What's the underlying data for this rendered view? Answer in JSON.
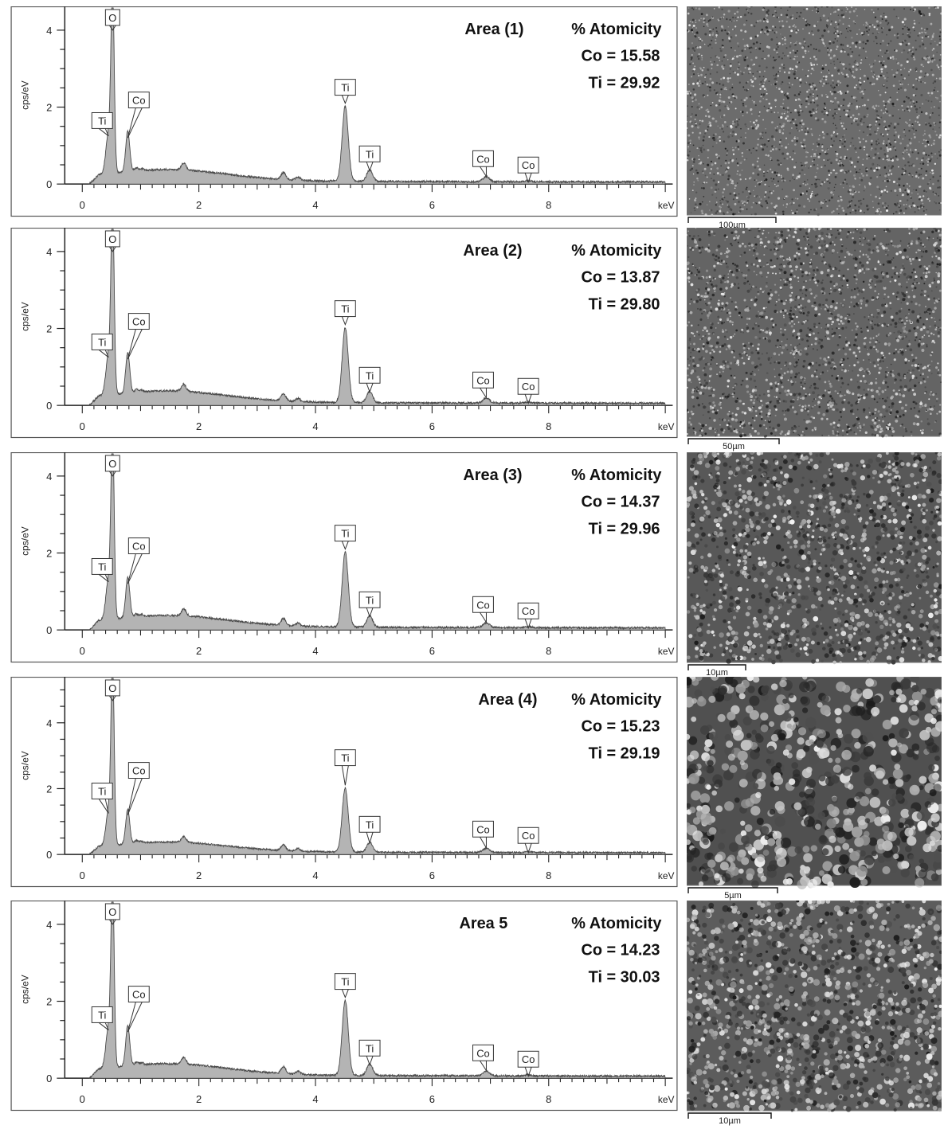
{
  "colors": {
    "frame": "#555555",
    "fill": "#b4b4b4",
    "line": "#4a4a4a",
    "text": "#111111"
  },
  "spectrum": {
    "xlabel_unit": "keV",
    "ylabel": "cps/eV",
    "x_ticks": [
      "0",
      "2",
      "4",
      "6",
      "8"
    ],
    "peaks": [
      {
        "label": "O",
        "energy": 0.52
      },
      {
        "label": "Ti",
        "energy": 0.45
      },
      {
        "label": "Co",
        "energy": 0.78
      },
      {
        "label": "Ti",
        "energy": 4.51
      },
      {
        "label": "Ti",
        "energy": 4.93
      },
      {
        "label": "Co",
        "energy": 6.93
      },
      {
        "label": "Co",
        "energy": 7.65
      }
    ]
  },
  "panels": [
    {
      "area_label": "Area (1)",
      "atomicity_label": "% Atomicity",
      "co_line": "Co = 15.58",
      "ti_line": "Ti   = 29.92",
      "scale_bar": "100µm",
      "y_ticks": [
        "0",
        "2",
        "4"
      ]
    },
    {
      "area_label": "Area (2)",
      "atomicity_label": "% Atomicity",
      "co_line": "Co = 13.87",
      "ti_line": "Ti = 29.80",
      "scale_bar": "50µm",
      "y_ticks": [
        "0",
        "2",
        "4"
      ]
    },
    {
      "area_label": "Area (3)",
      "atomicity_label": "% Atomicity",
      "co_line": "Co = 14.37",
      "ti_line": "Ti = 29.96",
      "scale_bar": "10µm",
      "y_ticks": [
        "0",
        "2",
        "4"
      ]
    },
    {
      "area_label": "Area (4)",
      "atomicity_label": "% Atomicity",
      "co_line": "Co = 15.23",
      "ti_line": "Ti = 29.19",
      "scale_bar": "5µm",
      "y_ticks": [
        "0",
        "2",
        "4"
      ]
    },
    {
      "area_label": "Area 5",
      "atomicity_label": "% Atomicity",
      "co_line": "Co = 14.23",
      "ti_line": "Ti   = 30.03",
      "scale_bar": "10µm",
      "y_ticks": [
        "0",
        "2",
        "4"
      ]
    }
  ],
  "chart_data": [
    {
      "type": "line",
      "title": "Area (1)",
      "xlabel": "keV",
      "ylabel": "cps/eV",
      "xlim": [
        -0.3,
        10.1
      ],
      "ylim": [
        0,
        4.5
      ],
      "peaks": [
        {
          "element": "O",
          "x": 0.52,
          "y": 4.6
        },
        {
          "element": "Ti",
          "x": 0.45,
          "y": 1.25
        },
        {
          "element": "Co",
          "x": 0.78,
          "y": 1.2
        },
        {
          "element": "Ti",
          "x": 4.51,
          "y": 2.1
        },
        {
          "element": "Ti",
          "x": 4.93,
          "y": 0.35
        },
        {
          "element": "Co",
          "x": 6.93,
          "y": 0.2
        },
        {
          "element": "Co",
          "x": 7.65,
          "y": 0.05
        }
      ],
      "atomicity_percent": {
        "Co": 15.58,
        "Ti": 29.92
      }
    },
    {
      "type": "line",
      "title": "Area (2)",
      "xlabel": "keV",
      "ylabel": "cps/eV",
      "xlim": [
        -0.3,
        10.1
      ],
      "ylim": [
        0,
        4.5
      ],
      "peaks": [
        {
          "element": "O",
          "x": 0.52,
          "y": 4.6
        },
        {
          "element": "Ti",
          "x": 0.45,
          "y": 1.25
        },
        {
          "element": "Co",
          "x": 0.78,
          "y": 1.2
        },
        {
          "element": "Ti",
          "x": 4.51,
          "y": 2.1
        },
        {
          "element": "Ti",
          "x": 4.93,
          "y": 0.35
        },
        {
          "element": "Co",
          "x": 6.93,
          "y": 0.2
        },
        {
          "element": "Co",
          "x": 7.65,
          "y": 0.05
        }
      ],
      "atomicity_percent": {
        "Co": 13.87,
        "Ti": 29.8
      }
    },
    {
      "type": "line",
      "title": "Area (3)",
      "xlabel": "keV",
      "ylabel": "cps/eV",
      "xlim": [
        -0.3,
        10.1
      ],
      "ylim": [
        0,
        4.5
      ],
      "peaks": [
        {
          "element": "O",
          "x": 0.52,
          "y": 4.6
        },
        {
          "element": "Ti",
          "x": 0.45,
          "y": 1.25
        },
        {
          "element": "Co",
          "x": 0.78,
          "y": 1.2
        },
        {
          "element": "Ti",
          "x": 4.51,
          "y": 2.1
        },
        {
          "element": "Ti",
          "x": 4.93,
          "y": 0.35
        },
        {
          "element": "Co",
          "x": 6.93,
          "y": 0.2
        },
        {
          "element": "Co",
          "x": 7.65,
          "y": 0.05
        }
      ],
      "atomicity_percent": {
        "Co": 14.37,
        "Ti": 29.96
      }
    },
    {
      "type": "line",
      "title": "Area (4)",
      "xlabel": "keV",
      "ylabel": "cps/eV",
      "xlim": [
        -0.3,
        10.1
      ],
      "ylim": [
        0,
        5.3
      ],
      "peaks": [
        {
          "element": "O",
          "x": 0.52,
          "y": 5.3
        },
        {
          "element": "Ti",
          "x": 0.45,
          "y": 1.25
        },
        {
          "element": "Co",
          "x": 0.78,
          "y": 1.2
        },
        {
          "element": "Ti",
          "x": 4.51,
          "y": 2.1
        },
        {
          "element": "Ti",
          "x": 4.93,
          "y": 0.35
        },
        {
          "element": "Co",
          "x": 6.93,
          "y": 0.2
        },
        {
          "element": "Co",
          "x": 7.65,
          "y": 0.05
        }
      ],
      "atomicity_percent": {
        "Co": 15.23,
        "Ti": 29.19
      }
    },
    {
      "type": "line",
      "title": "Area 5",
      "xlabel": "keV",
      "ylabel": "cps/eV",
      "xlim": [
        -0.3,
        10.1
      ],
      "ylim": [
        0,
        4.5
      ],
      "peaks": [
        {
          "element": "O",
          "x": 0.52,
          "y": 4.6
        },
        {
          "element": "Ti",
          "x": 0.45,
          "y": 1.25
        },
        {
          "element": "Co",
          "x": 0.78,
          "y": 1.2
        },
        {
          "element": "Ti",
          "x": 4.51,
          "y": 2.1
        },
        {
          "element": "Ti",
          "x": 4.93,
          "y": 0.35
        },
        {
          "element": "Co",
          "x": 6.93,
          "y": 0.2
        },
        {
          "element": "Co",
          "x": 7.65,
          "y": 0.05
        }
      ],
      "atomicity_percent": {
        "Co": 14.23,
        "Ti": 30.03
      }
    }
  ]
}
